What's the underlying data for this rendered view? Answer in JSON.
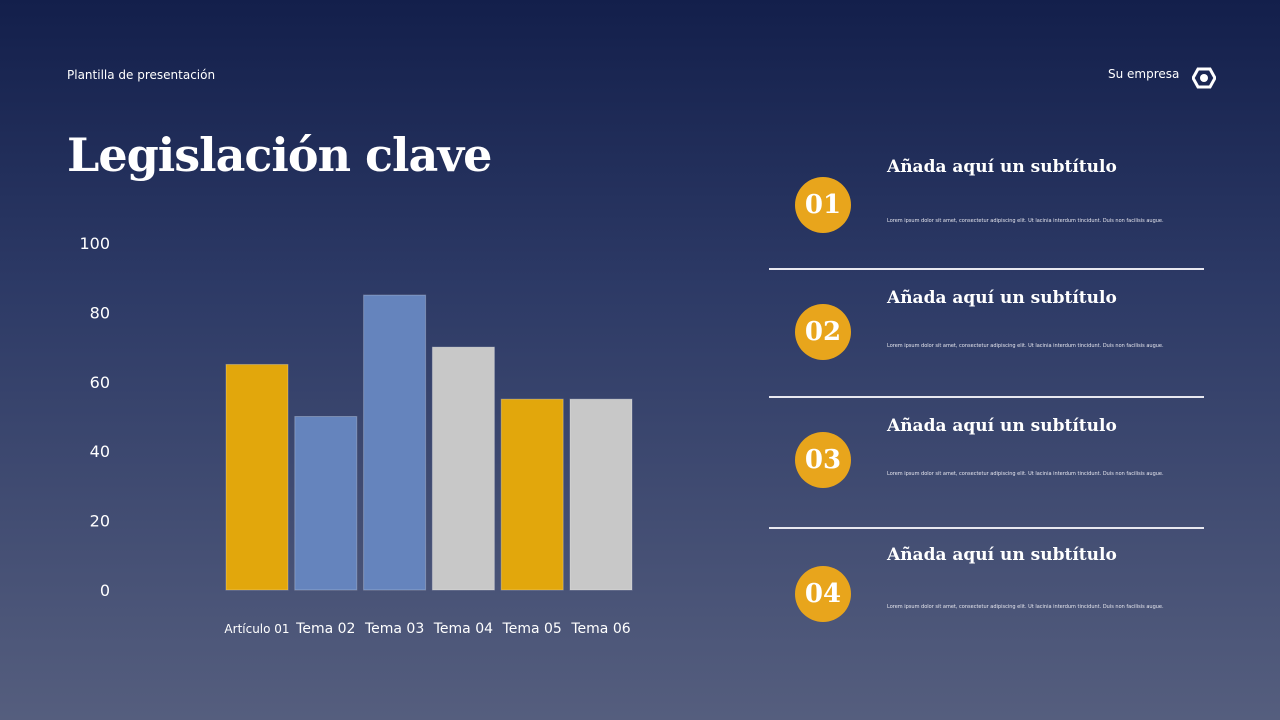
{
  "header": {
    "template_label": "Plantilla de presentación",
    "company": "Su empresa",
    "logo_icon": "hexagon-logo-icon"
  },
  "title": "Legislación clave",
  "chart_data": {
    "type": "bar",
    "categories": [
      "Artículo 01",
      "Tema 02",
      "Tema 03",
      "Tema 04",
      "Tema 05",
      "Tema 06"
    ],
    "values": [
      65,
      50,
      85,
      70,
      55,
      55
    ],
    "colors": [
      "#e2a70c",
      "#6584bd",
      "#6584bd",
      "#c8c8c8",
      "#e2a70c",
      "#c8c8c8"
    ],
    "yticks": [
      0,
      20,
      40,
      60,
      80,
      100
    ],
    "ylim": [
      0,
      100
    ],
    "grid": false
  },
  "sections": [
    {
      "number": "01",
      "subtitle": "Añada aquí un subtítulo",
      "body": "Lorem ipsum dolor sit amet, consectetur adipiscing elit. Ut lacinia interdum tincidunt. Duis non facilisis augue."
    },
    {
      "number": "02",
      "subtitle": "Añada aquí un subtítulo",
      "body": "Lorem ipsum dolor sit amet, consectetur adipiscing elit. Ut lacinia interdum tincidunt. Duis non facilisis augue."
    },
    {
      "number": "03",
      "subtitle": "Añada aquí un subtítulo",
      "body": "Lorem ipsum dolor sit amet, consectetur adipiscing elit. Ut lacinia interdum tincidunt. Duis non facilisis augue."
    },
    {
      "number": "04",
      "subtitle": "Añada aquí un subtítulo",
      "body": "Lorem ipsum dolor sit amet, consectetur adipiscing elit. Ut lacinia interdum tincidunt. Duis non facilisis augue."
    }
  ],
  "accent": "#e8a51c"
}
